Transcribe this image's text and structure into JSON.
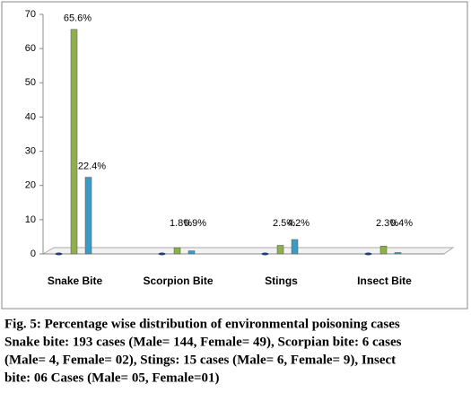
{
  "chart_data": {
    "type": "bar",
    "categories": [
      "Snake Bite",
      "Scorpion Bite",
      "Stings",
      "Insect Bite"
    ],
    "series": [
      {
        "color": "#1f3d7a",
        "values": [
          0,
          0,
          0,
          0
        ]
      },
      {
        "color": "#8db04a",
        "values": [
          65.6,
          1.8,
          2.5,
          2.3
        ],
        "value_labels": [
          "65.6%",
          "1.8%",
          "2.5%",
          "2.3%"
        ]
      },
      {
        "color": "#3a9cc4",
        "values": [
          22.4,
          0.9,
          4.2,
          0.4
        ],
        "value_labels": [
          "22.4%",
          "0.9%",
          "4.2%",
          "0.4%"
        ]
      }
    ],
    "ylim": [
      0,
      70
    ],
    "yticks": [
      0,
      10,
      20,
      30,
      40,
      50,
      60,
      70
    ],
    "caption": [
      "Fig. 5: Percentage wise distribution of environmental poisoning cases",
      "Snake bite: 193 cases (Male= 144, Female= 49), Scorpian bite: 6 cases",
      "(Male= 4, Female= 02), Stings: 15 cases (Male= 6, Female= 9), Insect",
      "bite: 06 Cases (Male= 05, Female=01)"
    ]
  }
}
